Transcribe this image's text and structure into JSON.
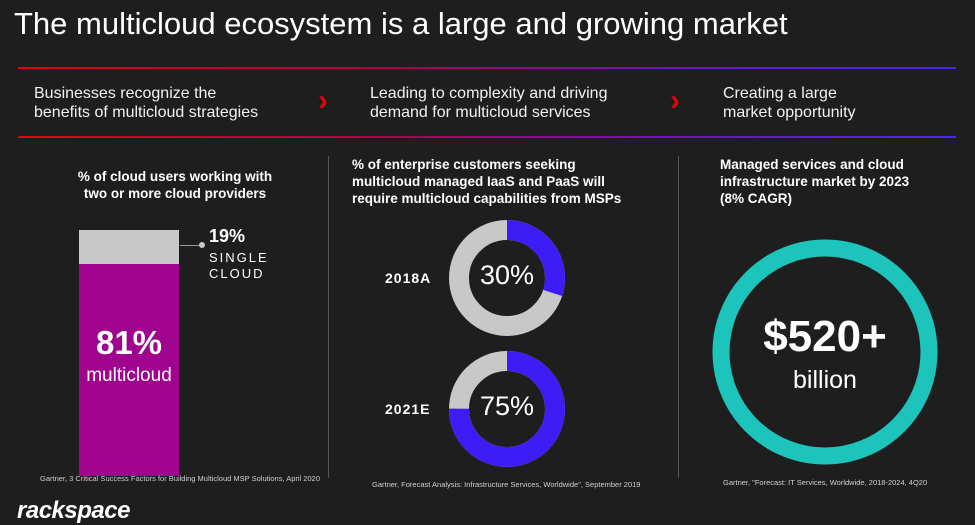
{
  "title": "The multicloud ecosystem is a large and growing market",
  "steps": [
    {
      "line1": "Businesses recognize the",
      "line2": "benefits of multicloud strategies"
    },
    {
      "line1": "Leading to complexity and driving",
      "line2": "demand for multicloud services"
    },
    {
      "line1": "Creating a large",
      "line2": "market opportunity"
    }
  ],
  "chevron": "›",
  "col1": {
    "heading_line1": "% of cloud users working with",
    "heading_line2": "two or more cloud providers",
    "multi": {
      "percent": "81%",
      "label": "multicloud",
      "fraction": 0.81
    },
    "single": {
      "percent": "19%",
      "label_line1": "SINGLE",
      "label_line2": "CLOUD",
      "fraction": 0.19
    },
    "source": "Gartner, 3 Critical Success Factors for Building Multicloud MSP Solutions, April 2020"
  },
  "col2": {
    "heading_line1": "% of enterprise customers seeking",
    "heading_line2": "multicloud managed IaaS and PaaS will",
    "heading_line3": "require multicloud capabilities from MSPs",
    "donuts": [
      {
        "year": "2018A",
        "percent": "30%",
        "fraction": 0.3
      },
      {
        "year": "2021E",
        "percent": "75%",
        "fraction": 0.75
      }
    ],
    "source": "Gartner, Forecast Analysis: Infrastructure Services, Worldwide\", September 2019"
  },
  "col3": {
    "heading_line1": "Managed services and cloud",
    "heading_line2": "infrastructure market by 2023",
    "heading_line3": "(8% CAGR)",
    "value": "$520+",
    "unit": "billion",
    "source": "Gartner, \"Forecast: IT Services, Worldwide, 2018-2024, 4Q20"
  },
  "logo": "rackspace",
  "colors": {
    "accent_red": "#e60012",
    "multicloud_bar": "#a0048f",
    "single_bar": "#c8c8c8",
    "donut_fill": "#3d1cf5",
    "donut_track": "#c8c8c8",
    "ring": "#1dc4bb"
  }
}
